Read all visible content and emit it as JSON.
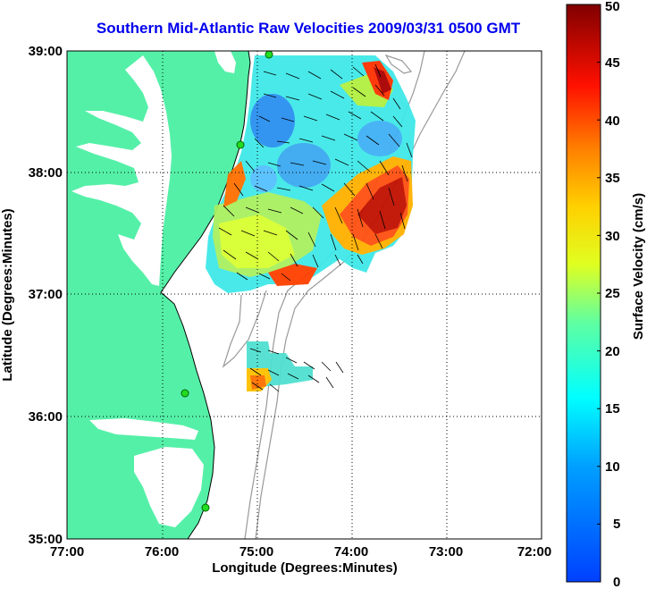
{
  "title": "Southern Mid-Atlantic Raw Velocities 2009/03/31 0500 GMT",
  "x_axis": {
    "label": "Longitude (Degrees:Minutes)",
    "ticks": [
      "77:00",
      "76:00",
      "75:00",
      "74:00",
      "73:00",
      "72:00"
    ],
    "range": [
      -77,
      -72
    ]
  },
  "y_axis": {
    "label": "Latitude (Degrees:Minutes)",
    "ticks": [
      "39:00",
      "38:00",
      "37:00",
      "36:00",
      "35:00"
    ],
    "range": [
      35,
      39
    ]
  },
  "colorbar": {
    "label": "Surface Velocity (cm/s)",
    "ticks": [
      "50",
      "45",
      "40",
      "35",
      "30",
      "25",
      "20",
      "15",
      "10",
      "5",
      "0"
    ],
    "range": [
      0,
      50
    ]
  },
  "grid": "dotted",
  "colors": {
    "land": "#55f0a8",
    "title": "#0000ee",
    "station": "#22dd22",
    "bathymetry": "#999999"
  }
}
